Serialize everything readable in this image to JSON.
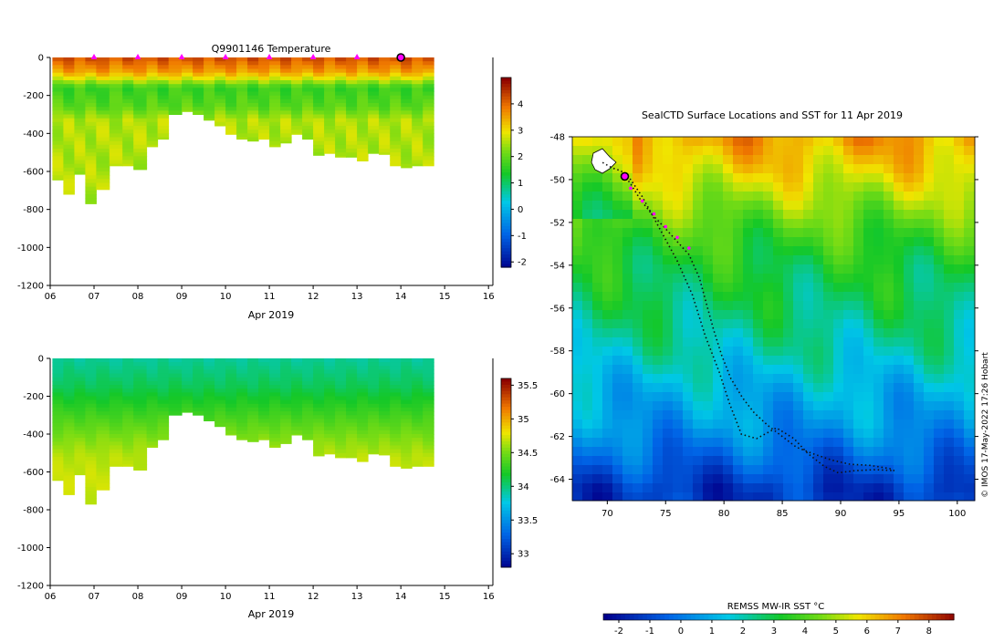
{
  "chart_data": [
    {
      "type": "heatmap",
      "title": "Q9901146  Temperature",
      "xlabel": "Apr 2019",
      "x_ticks": [
        "06",
        "07",
        "08",
        "09",
        "10",
        "11",
        "12",
        "13",
        "14",
        "15",
        "16"
      ],
      "y_ticks": [
        0,
        -200,
        -400,
        -600,
        -800,
        -1000,
        -1200
      ],
      "ylim": [
        -1200,
        0
      ],
      "xlim": [
        6,
        16.1
      ],
      "colorbar": {
        "ticks": [
          4,
          3,
          2,
          1,
          0,
          -1,
          -2
        ],
        "range": [
          -2.2,
          5
        ]
      },
      "bands": [
        {
          "depth": 0,
          "value": 4.3
        },
        {
          "depth": -75,
          "value": 3.6
        },
        {
          "depth": -110,
          "value": 2.9
        },
        {
          "depth": -160,
          "value": 1.7
        },
        {
          "depth": -260,
          "value": 2.0
        },
        {
          "depth": -330,
          "value": 2.6
        }
      ],
      "profiles": [
        {
          "t": 6.05,
          "bottom": -645
        },
        {
          "t": 6.3,
          "bottom": -720
        },
        {
          "t": 6.55,
          "bottom": -615
        },
        {
          "t": 6.8,
          "bottom": -770
        },
        {
          "t": 7.05,
          "bottom": -695
        },
        {
          "t": 7.35,
          "bottom": -570
        },
        {
          "t": 7.65,
          "bottom": -570
        },
        {
          "t": 7.9,
          "bottom": -590
        },
        {
          "t": 8.2,
          "bottom": -470
        },
        {
          "t": 8.45,
          "bottom": -430
        },
        {
          "t": 8.7,
          "bottom": -300
        },
        {
          "t": 9.0,
          "bottom": -285
        },
        {
          "t": 9.25,
          "bottom": -300
        },
        {
          "t": 9.5,
          "bottom": -330
        },
        {
          "t": 9.75,
          "bottom": -360
        },
        {
          "t": 10.0,
          "bottom": -405
        },
        {
          "t": 10.25,
          "bottom": -430
        },
        {
          "t": 10.5,
          "bottom": -440
        },
        {
          "t": 10.75,
          "bottom": -430
        },
        {
          "t": 11.0,
          "bottom": -470
        },
        {
          "t": 11.25,
          "bottom": -450
        },
        {
          "t": 11.5,
          "bottom": -405
        },
        {
          "t": 11.75,
          "bottom": -430
        },
        {
          "t": 12.0,
          "bottom": -515
        },
        {
          "t": 12.25,
          "bottom": -505
        },
        {
          "t": 12.5,
          "bottom": -525
        },
        {
          "t": 12.75,
          "bottom": -525
        },
        {
          "t": 13.0,
          "bottom": -545
        },
        {
          "t": 13.25,
          "bottom": -505
        },
        {
          "t": 13.5,
          "bottom": -510
        },
        {
          "t": 13.75,
          "bottom": -570
        },
        {
          "t": 14.0,
          "bottom": -580
        },
        {
          "t": 14.25,
          "bottom": -570
        },
        {
          "t": 14.5,
          "bottom": -570
        }
      ],
      "markers": [
        7.0,
        8.0,
        9.0,
        10.0,
        11.0,
        12.0,
        13.0
      ],
      "current": 14.0
    },
    {
      "type": "heatmap",
      "title": "",
      "xlabel": "Apr 2019",
      "x_ticks": [
        "06",
        "07",
        "08",
        "09",
        "10",
        "11",
        "12",
        "13",
        "14",
        "15",
        "16"
      ],
      "y_ticks": [
        0,
        -200,
        -400,
        -600,
        -800,
        -1000,
        -1200
      ],
      "ylim": [
        -1200,
        0
      ],
      "xlim": [
        6,
        16.1
      ],
      "colorbar": {
        "ticks": [
          35.5,
          35,
          34.5,
          34,
          33.5,
          33
        ],
        "range": [
          32.8,
          35.6
        ]
      },
      "bands": [
        {
          "depth": 0,
          "value": 33.95
        },
        {
          "depth": -150,
          "value": 34.1
        },
        {
          "depth": -300,
          "value": 34.35
        },
        {
          "depth": -420,
          "value": 34.55
        },
        {
          "depth": -520,
          "value": 34.68
        },
        {
          "depth": -620,
          "value": 34.72
        }
      ],
      "same_profiles_as": 0
    },
    {
      "type": "heatmap",
      "title": "SealCTD Surface Locations and SST for 11 Apr 2019",
      "xlabel": "",
      "ylabel": "",
      "x_ticks": [
        70,
        75,
        80,
        85,
        90,
        95,
        100
      ],
      "y_ticks": [
        -48,
        -50,
        -52,
        -54,
        -56,
        -58,
        -60,
        -62,
        -64
      ],
      "xlim": [
        67,
        101.5
      ],
      "ylim": [
        -65,
        -48
      ],
      "colorbar_title": "REMSS MW-IR SST °C",
      "colorbar_ticks": [
        -2,
        -1,
        0,
        1,
        2,
        3,
        4,
        5,
        6,
        7,
        8
      ],
      "colorbar_range": [
        -2.5,
        8.8
      ],
      "sst_rows": [
        {
          "lat": -48,
          "value": 6.6
        },
        {
          "lat": -49.5,
          "value": 5.8
        },
        {
          "lat": -51,
          "value": 4.8
        },
        {
          "lat": -52.5,
          "value": 3.8
        },
        {
          "lat": -54,
          "value": 3.1
        },
        {
          "lat": -56,
          "value": 2.6
        },
        {
          "lat": -58,
          "value": 1.9
        },
        {
          "lat": -60,
          "value": 1.0
        },
        {
          "lat": -61.5,
          "value": 0.5
        },
        {
          "lat": -63,
          "value": -0.4
        },
        {
          "lat": -64.5,
          "value": -1.4
        }
      ],
      "track": [
        [
          69.6,
          -49.2
        ],
        [
          70.4,
          -49.45
        ],
        [
          71.2,
          -49.6
        ],
        [
          72.0,
          -50.2
        ],
        [
          72.8,
          -50.9
        ],
        [
          73.8,
          -51.6
        ],
        [
          75.0,
          -52.3
        ],
        [
          76.0,
          -52.9
        ],
        [
          77.0,
          -53.5
        ],
        [
          77.9,
          -54.6
        ],
        [
          78.5,
          -55.8
        ],
        [
          79.1,
          -57.0
        ],
        [
          79.8,
          -58.2
        ],
        [
          80.6,
          -59.3
        ],
        [
          81.6,
          -60.2
        ],
        [
          82.6,
          -60.9
        ],
        [
          83.8,
          -61.5
        ],
        [
          85.0,
          -62.0
        ],
        [
          86.2,
          -62.5
        ],
        [
          87.6,
          -62.8
        ],
        [
          89.2,
          -63.1
        ],
        [
          90.8,
          -63.3
        ],
        [
          92.5,
          -63.35
        ],
        [
          94.2,
          -63.5
        ],
        [
          94.6,
          -63.6
        ],
        [
          93.0,
          -63.55
        ],
        [
          91.2,
          -63.6
        ],
        [
          89.8,
          -63.7
        ],
        [
          88.6,
          -63.4
        ],
        [
          87.2,
          -62.8
        ],
        [
          86.0,
          -62.1
        ],
        [
          84.5,
          -61.6
        ],
        [
          82.8,
          -62.1
        ],
        [
          81.5,
          -61.9
        ],
        [
          80.5,
          -60.5
        ],
        [
          79.6,
          -59.0
        ],
        [
          78.4,
          -57.3
        ],
        [
          77.3,
          -55.4
        ],
        [
          76.0,
          -53.8
        ],
        [
          74.4,
          -52.2
        ],
        [
          73.0,
          -50.8
        ],
        [
          72.0,
          -50.0
        ],
        [
          71.4,
          -49.85
        ]
      ],
      "track_markers": [
        [
          72.0,
          -50.4
        ],
        [
          73.0,
          -51.0
        ],
        [
          74.0,
          -51.6
        ],
        [
          75.0,
          -52.2
        ],
        [
          76.0,
          -52.7
        ],
        [
          77.0,
          -53.2
        ]
      ],
      "current": [
        71.5,
        -49.85
      ],
      "credit": "© IMOS 17-May-2022 17:26 Hobart"
    }
  ]
}
